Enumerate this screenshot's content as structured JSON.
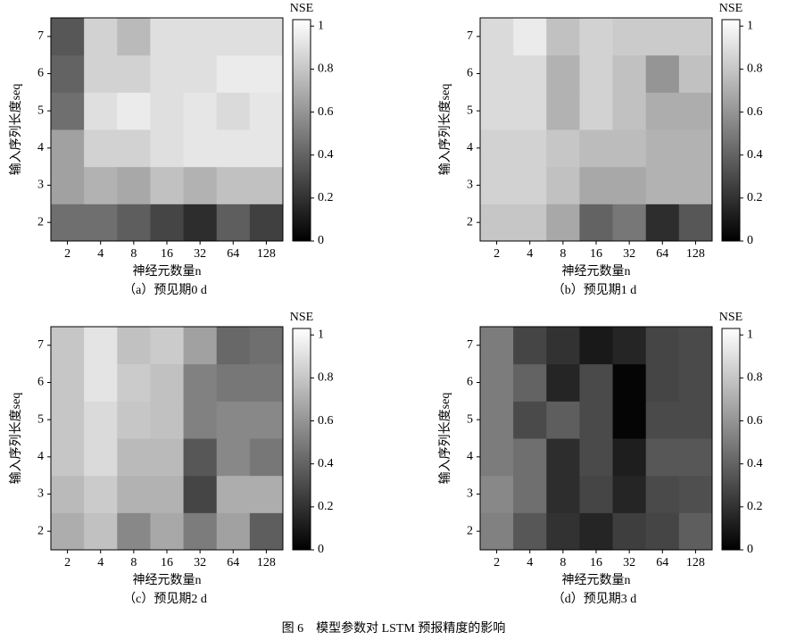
{
  "caption": "图 6　模型参数对 LSTM 预报精度的影响",
  "chart_data": [
    {
      "type": "heatmap",
      "subtitle": "（a）预见期0 d",
      "x_label": "神经元数量n",
      "y_label": "输入序列长度seq",
      "x": [
        2,
        4,
        8,
        16,
        32,
        64,
        128
      ],
      "y": [
        2,
        3,
        4,
        5,
        6,
        7
      ],
      "values": [
        [
          0.45,
          0.45,
          0.38,
          0.28,
          0.18,
          0.38,
          0.26
        ],
        [
          0.65,
          0.72,
          0.68,
          0.78,
          0.72,
          0.78,
          0.78
        ],
        [
          0.65,
          0.85,
          0.85,
          0.9,
          0.93,
          0.93,
          0.93
        ],
        [
          0.45,
          0.9,
          0.95,
          0.9,
          0.93,
          0.88,
          0.93
        ],
        [
          0.4,
          0.85,
          0.85,
          0.9,
          0.9,
          0.95,
          0.95
        ],
        [
          0.35,
          0.85,
          0.75,
          0.9,
          0.9,
          0.9,
          0.9
        ]
      ],
      "colorbar_label": "NSE",
      "clim": [
        0,
        1.03
      ],
      "cticks": [
        0,
        0.2,
        0.4,
        0.6,
        0.8,
        1
      ]
    },
    {
      "type": "heatmap",
      "subtitle": "（b）预见期1 d",
      "x_label": "神经元数量n",
      "y_label": "输入序列长度seq",
      "x": [
        2,
        4,
        8,
        16,
        32,
        64,
        128
      ],
      "y": [
        2,
        3,
        4,
        5,
        6,
        7
      ],
      "values": [
        [
          0.8,
          0.8,
          0.68,
          0.4,
          0.48,
          0.18,
          0.35
        ],
        [
          0.85,
          0.85,
          0.78,
          0.68,
          0.68,
          0.72,
          0.72
        ],
        [
          0.85,
          0.85,
          0.8,
          0.76,
          0.76,
          0.72,
          0.72
        ],
        [
          0.88,
          0.88,
          0.72,
          0.85,
          0.78,
          0.7,
          0.7
        ],
        [
          0.88,
          0.88,
          0.72,
          0.85,
          0.78,
          0.6,
          0.78
        ],
        [
          0.88,
          0.95,
          0.78,
          0.85,
          0.82,
          0.82,
          0.82
        ]
      ],
      "colorbar_label": "NSE",
      "clim": [
        0,
        1.03
      ],
      "cticks": [
        0,
        0.2,
        0.4,
        0.6,
        0.8,
        1
      ]
    },
    {
      "type": "heatmap",
      "subtitle": "（c）预见期2 d",
      "x_label": "神经元数量n",
      "y_label": "输入序列长度seq",
      "x": [
        2,
        4,
        8,
        16,
        32,
        64,
        128
      ],
      "y": [
        2,
        3,
        4,
        5,
        6,
        7
      ],
      "values": [
        [
          0.7,
          0.78,
          0.55,
          0.68,
          0.5,
          0.65,
          0.38
        ],
        [
          0.75,
          0.82,
          0.72,
          0.72,
          0.28,
          0.7,
          0.7
        ],
        [
          0.8,
          0.88,
          0.75,
          0.75,
          0.35,
          0.55,
          0.48
        ],
        [
          0.8,
          0.88,
          0.8,
          0.78,
          0.52,
          0.55,
          0.55
        ],
        [
          0.8,
          0.92,
          0.82,
          0.78,
          0.52,
          0.48,
          0.48
        ],
        [
          0.8,
          0.92,
          0.78,
          0.82,
          0.65,
          0.42,
          0.45
        ]
      ],
      "colorbar_label": "NSE",
      "clim": [
        0,
        1.03
      ],
      "cticks": [
        0,
        0.2,
        0.4,
        0.6,
        0.8,
        1
      ]
    },
    {
      "type": "heatmap",
      "subtitle": "（d）预见期3 d",
      "x_label": "神经元数量n",
      "y_label": "输入序列长度seq",
      "x": [
        2,
        4,
        8,
        16,
        32,
        64,
        128
      ],
      "y": [
        2,
        3,
        4,
        5,
        6,
        7
      ],
      "values": [
        [
          0.52,
          0.35,
          0.2,
          0.15,
          0.25,
          0.28,
          0.38
        ],
        [
          0.55,
          0.45,
          0.18,
          0.28,
          0.15,
          0.3,
          0.32
        ],
        [
          0.5,
          0.45,
          0.18,
          0.3,
          0.12,
          0.35,
          0.35
        ],
        [
          0.5,
          0.3,
          0.38,
          0.3,
          0.02,
          0.3,
          0.3
        ],
        [
          0.5,
          0.4,
          0.15,
          0.3,
          0.02,
          0.28,
          0.3
        ],
        [
          0.5,
          0.28,
          0.2,
          0.1,
          0.15,
          0.28,
          0.3
        ]
      ],
      "colorbar_label": "NSE",
      "clim": [
        0,
        1.03
      ],
      "cticks": [
        0,
        0.2,
        0.4,
        0.6,
        0.8,
        1
      ]
    }
  ]
}
